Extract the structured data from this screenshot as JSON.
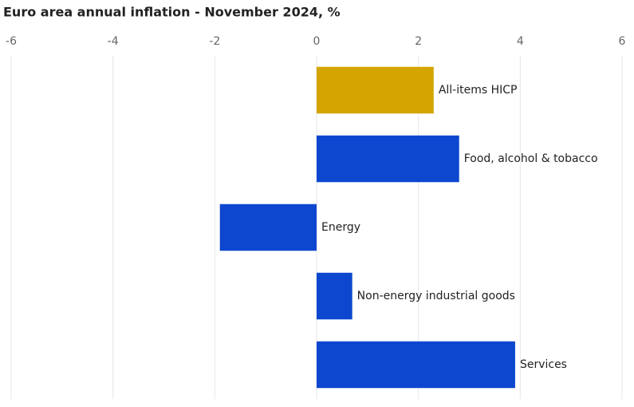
{
  "chart_data": {
    "type": "hbar",
    "title": "Euro area annual inflation - November 2024, %",
    "categories": [
      "All-items HICP",
      "Food, alcohol & tobacco",
      "Energy",
      "Non-energy industrial goods",
      "Services"
    ],
    "values": [
      2.3,
      2.8,
      -1.9,
      0.7,
      3.9
    ],
    "colors": [
      "#d4a500",
      "#0d47cf",
      "#0d47cf",
      "#0d47cf",
      "#0d47cf"
    ],
    "xlim": [
      -6,
      6
    ],
    "xticks": [
      -6,
      -4,
      -2,
      0,
      2,
      4,
      6
    ],
    "grid": true
  }
}
